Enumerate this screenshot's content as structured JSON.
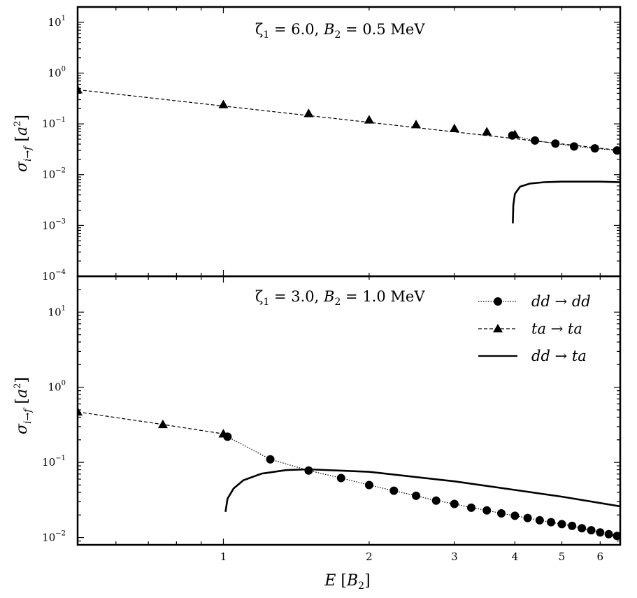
{
  "chart_data": [
    {
      "type": "line",
      "xscale": "log",
      "yscale": "log",
      "xlim": [
        0.5,
        6.6
      ],
      "ylim": [
        0.0001,
        20
      ],
      "ylabel": "σ_{i→f}  [a²]",
      "annotation": "ζ1 = 6.0, B2 = 0.5 MeV",
      "yticks": [
        {
          "base": "10",
          "exp": "1"
        },
        {
          "base": "10",
          "exp": "0"
        },
        {
          "base": "10",
          "exp": "−1"
        },
        {
          "base": "10",
          "exp": "−2"
        },
        {
          "base": "10",
          "exp": "−3"
        },
        {
          "base": "10",
          "exp": "−4"
        }
      ],
      "series": [
        {
          "name": "dd → dd",
          "style": "dotted",
          "marker": "circle",
          "x": [
            3.95,
            4.4,
            4.85,
            5.3,
            5.85,
            6.5
          ],
          "y": [
            0.059,
            0.047,
            0.041,
            0.036,
            0.033,
            0.03
          ]
        },
        {
          "name": "ta → ta",
          "style": "dashed",
          "marker": "triangle",
          "x": [
            0.5,
            1.0,
            1.5,
            2.0,
            2.5,
            3.0,
            3.5,
            4.0
          ],
          "y": [
            0.47,
            0.24,
            0.16,
            0.12,
            0.097,
            0.081,
            0.07,
            0.062
          ],
          "line_x": [
            0.5,
            6.6
          ],
          "line_y": [
            0.47,
            0.03
          ]
        },
        {
          "name": "dd → ta",
          "style": "solid",
          "marker": "none",
          "x": [
            3.96,
            3.97,
            4.0,
            4.1,
            4.3,
            4.6,
            5.0,
            5.5,
            6.0,
            6.6
          ],
          "y": [
            0.0011,
            0.0025,
            0.0042,
            0.0058,
            0.0067,
            0.0071,
            0.0073,
            0.0073,
            0.0073,
            0.0071
          ]
        }
      ]
    },
    {
      "type": "line",
      "xscale": "log",
      "yscale": "log",
      "xlim": [
        0.5,
        6.6
      ],
      "ylim": [
        0.008,
        30
      ],
      "xlabel": "E   [B₂]",
      "ylabel": "σ_{i→f}  [a²]",
      "annotation": "ζ1 = 3.0, B2 = 1.0 MeV",
      "xticks": [
        "1",
        "2",
        "3",
        "4",
        "5",
        "6"
      ],
      "xtick_values": [
        1,
        2,
        3,
        4,
        5,
        6
      ],
      "yticks": [
        {
          "base": "10",
          "exp": "1"
        },
        {
          "base": "10",
          "exp": "0"
        },
        {
          "base": "10",
          "exp": "−1"
        },
        {
          "base": "10",
          "exp": "−2"
        }
      ],
      "legend": {
        "position": "top-right",
        "entries": [
          "dd → dd",
          "ta → ta",
          "dd → ta"
        ]
      },
      "series": [
        {
          "name": "dd → dd",
          "style": "dotted",
          "marker": "circle",
          "x": [
            1.02,
            1.25,
            1.5,
            1.75,
            2.0,
            2.25,
            2.5,
            2.75,
            3.0,
            3.25,
            3.5,
            3.75,
            4.0,
            4.25,
            4.5,
            4.75,
            5.0,
            5.25,
            5.5,
            5.75,
            6.0,
            6.25,
            6.5
          ],
          "y": [
            0.22,
            0.11,
            0.078,
            0.062,
            0.05,
            0.042,
            0.036,
            0.031,
            0.028,
            0.025,
            0.023,
            0.021,
            0.0195,
            0.0182,
            0.017,
            0.016,
            0.0151,
            0.0143,
            0.0133,
            0.0125,
            0.0117,
            0.0111,
            0.0105
          ]
        },
        {
          "name": "ta → ta",
          "style": "dashed",
          "marker": "triangle",
          "x": [
            0.5,
            0.75,
            1.0
          ],
          "y": [
            0.47,
            0.32,
            0.24
          ]
        },
        {
          "name": "dd → ta",
          "style": "solid",
          "marker": "none",
          "x": [
            1.01,
            1.02,
            1.05,
            1.1,
            1.2,
            1.35,
            1.5,
            2.0,
            3.0,
            4.0,
            5.0,
            6.6
          ],
          "y": [
            0.022,
            0.033,
            0.045,
            0.058,
            0.071,
            0.079,
            0.081,
            0.075,
            0.056,
            0.043,
            0.035,
            0.026
          ]
        }
      ]
    }
  ]
}
